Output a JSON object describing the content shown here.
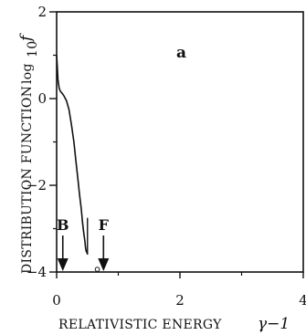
{
  "chart_data": {
    "type": "line",
    "panel_label": "a",
    "xlabel": "RELATIVISTIC ENERGY",
    "xlabel_symbol": "γ−1",
    "ylabel": "DISTRIBUTION FUNCTION",
    "ylabel_symbol": "log",
    "ylabel_symbol_sub": "10",
    "ylabel_symbol_var": "f",
    "xlim": [
      0,
      4
    ],
    "ylim": [
      -4,
      2
    ],
    "xticks": [
      0,
      2,
      4
    ],
    "xtick_labels": [
      "0",
      "2",
      "4"
    ],
    "yticks": [
      -4,
      -2,
      0,
      2
    ],
    "ytick_labels": [
      "−4",
      "−2",
      "0",
      "2"
    ],
    "grid": false,
    "series": [
      {
        "x": [
          0.0,
          0.01,
          0.02,
          0.04,
          0.06,
          0.09,
          0.12,
          0.16,
          0.2,
          0.24,
          0.28,
          0.31,
          0.34,
          0.37,
          0.4,
          0.42,
          0.44,
          0.46,
          0.47,
          0.48,
          0.49,
          0.5
        ],
        "y": [
          1.0,
          0.75,
          0.45,
          0.25,
          0.17,
          0.12,
          0.06,
          -0.05,
          -0.25,
          -0.6,
          -1.0,
          -1.4,
          -1.8,
          -2.2,
          -2.55,
          -2.85,
          -3.1,
          -3.3,
          -3.45,
          -3.52,
          -3.55,
          -3.58
        ]
      }
    ],
    "spike": {
      "x": 0.5,
      "y_from": -3.6,
      "y_to": -2.75
    },
    "markers": [
      {
        "label": "B",
        "x": 0.1
      },
      {
        "label": "F",
        "x": 0.76
      }
    ],
    "open_point": {
      "x": 0.66,
      "y": -3.98
    }
  }
}
